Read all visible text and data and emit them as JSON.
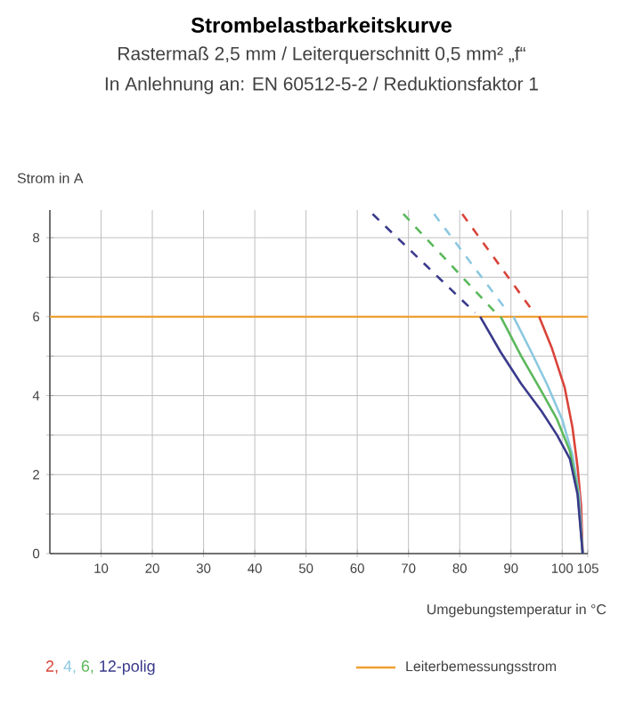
{
  "chart_data": {
    "type": "line",
    "title": "Strombelastbarkeitskurve",
    "subtitle": "Rastermaß 2,5 mm / Leiterquerschnitt 0,5 mm² „f“",
    "annotations": [
      "In Anlehnung an: EN 60512-5-2 / Reduktionsfaktor 1"
    ],
    "xlabel": "Umgebungstemperatur in °C",
    "ylabel": "Strom in A",
    "xlim": [
      0,
      105
    ],
    "ylim": [
      0,
      8.7
    ],
    "xticks": [
      10,
      20,
      30,
      40,
      50,
      60,
      70,
      80,
      90,
      100,
      105
    ],
    "yticks": [
      0,
      {
        "value": 1,
        "label": null
      },
      2,
      {
        "value": 3,
        "label": null
      },
      4,
      {
        "value": 5,
        "label": null
      },
      6,
      {
        "value": 7,
        "label": null
      },
      8
    ],
    "grid": true,
    "legend": "bottom",
    "marker": "none",
    "line_style": "solid",
    "series": [
      {
        "name": "2,",
        "color": "#d9443a",
        "x": [
          95.5,
          98,
          100.5,
          102,
          103,
          103.7,
          104
        ],
        "values": [
          6,
          5.2,
          4.2,
          3.2,
          2.2,
          1.2,
          0
        ]
      },
      {
        "name": "4,",
        "color": "#8cc8e0",
        "x": [
          90.5,
          94,
          97,
          100,
          102,
          103.3,
          104
        ],
        "values": [
          6,
          5.1,
          4.3,
          3.4,
          2.5,
          1.5,
          0
        ]
      },
      {
        "name": "6,",
        "color": "#5cb85c",
        "x": [
          88,
          92,
          96,
          99,
          101.5,
          103,
          104
        ],
        "values": [
          6,
          5.0,
          4.1,
          3.4,
          2.6,
          1.6,
          0
        ]
      },
      {
        "name": "12-polig",
        "color": "#3a3a8c",
        "x": [
          84,
          88,
          92,
          96,
          99,
          101.5,
          103,
          104
        ],
        "values": [
          6,
          5.1,
          4.3,
          3.6,
          3.0,
          2.4,
          1.5,
          0
        ]
      },
      {
        "color": "#d9443a",
        "line_style": "dashed",
        "x": [
          80.5,
          94.5
        ],
        "values": [
          8.6,
          6.1
        ]
      },
      {
        "color": "#8cc8e0",
        "line_style": "dashed",
        "x": [
          75,
          89.5
        ],
        "values": [
          8.6,
          6.1
        ]
      },
      {
        "color": "#5cb85c",
        "line_style": "dashed",
        "x": [
          69,
          87
        ],
        "values": [
          8.6,
          6.1
        ]
      },
      {
        "color": "#3a3a8c",
        "line_style": "dashed",
        "x": [
          63,
          83
        ],
        "values": [
          8.6,
          6.1
        ]
      }
    ],
    "ref_lines": [
      {
        "axis": "y",
        "value": 6,
        "label": "Leiterbemessungsstrom",
        "color": "#f0a030"
      }
    ]
  }
}
